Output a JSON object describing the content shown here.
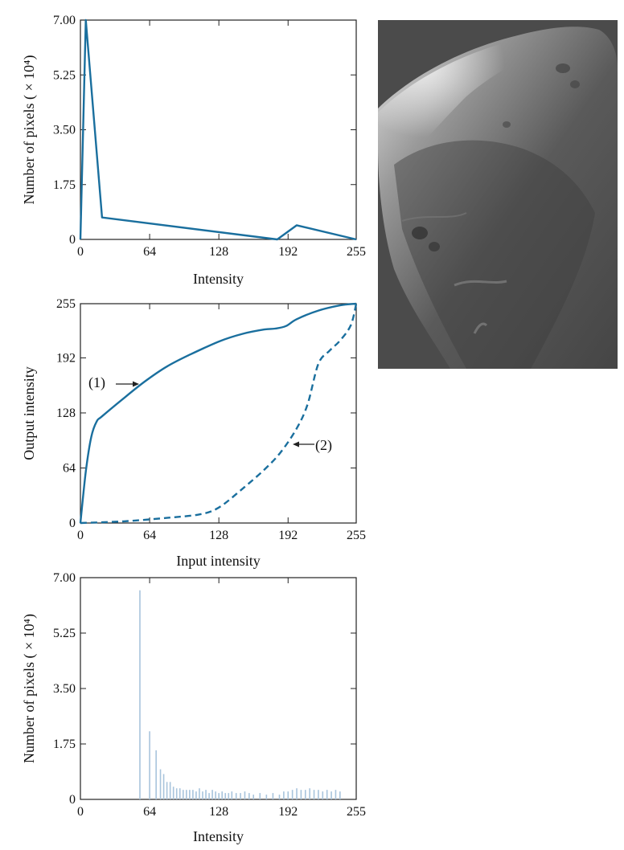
{
  "chart_data": [
    {
      "type": "line",
      "xlabel": "Intensity",
      "ylabel": "Number of pixels ( × 10⁴)",
      "xlim": [
        0,
        255
      ],
      "ylim": [
        0,
        7.0
      ],
      "xticks": [
        0,
        64,
        128,
        192,
        255
      ],
      "yticks": [
        0,
        1.75,
        3.5,
        5.25,
        7.0
      ],
      "xtick_labels": [
        "0",
        "64",
        "128",
        "192",
        "255"
      ],
      "ytick_labels": [
        "0",
        "1.75",
        "3.50",
        "5.25",
        "7.00"
      ],
      "series": [
        {
          "color": "#1a6f9e",
          "x": [
            0,
            5,
            20,
            182,
            200,
            255
          ],
          "y": [
            0,
            7.0,
            0.7,
            0.0,
            0.45,
            0.0
          ]
        }
      ]
    },
    {
      "type": "line",
      "xlabel": "Input intensity",
      "ylabel": "Output intensity",
      "xlim": [
        0,
        255
      ],
      "ylim": [
        0,
        255
      ],
      "xticks": [
        0,
        64,
        128,
        192,
        255
      ],
      "yticks": [
        0,
        64,
        128,
        192,
        255
      ],
      "xtick_labels": [
        "0",
        "64",
        "128",
        "192",
        "255"
      ],
      "ytick_labels": [
        "0",
        "64",
        "128",
        "192",
        "255"
      ],
      "annotations": [
        "(1)",
        "(2)"
      ],
      "series": [
        {
          "name": "(1)",
          "style": "solid",
          "color": "#1a6f9e",
          "x": [
            0,
            5,
            10,
            15,
            20,
            40,
            60,
            80,
            100,
            128,
            150,
            170,
            180,
            190,
            200,
            220,
            240,
            255
          ],
          "y": [
            0,
            60,
            100,
            118,
            124,
            145,
            165,
            182,
            195,
            211,
            220,
            225,
            226,
            229,
            237,
            247,
            253,
            255
          ]
        },
        {
          "name": "(2)",
          "style": "dashed",
          "color": "#1a6f9e",
          "x": [
            0,
            40,
            80,
            110,
            128,
            150,
            170,
            185,
            200,
            210,
            220,
            230,
            240,
            250,
            255
          ],
          "y": [
            0,
            2,
            6,
            10,
            18,
            40,
            62,
            82,
            110,
            138,
            185,
            200,
            212,
            230,
            255
          ]
        }
      ]
    },
    {
      "type": "bar",
      "xlabel": "Intensity",
      "ylabel": "Number of pixels ( × 10⁴)",
      "xlim": [
        0,
        255
      ],
      "ylim": [
        0,
        7.0
      ],
      "xticks": [
        0,
        64,
        128,
        192,
        255
      ],
      "yticks": [
        0,
        1.75,
        3.5,
        5.25,
        7.0
      ],
      "xtick_labels": [
        "0",
        "64",
        "128",
        "192",
        "255"
      ],
      "ytick_labels": [
        "0",
        "1.75",
        "3.50",
        "5.25",
        "7.00"
      ],
      "color": "#a8c4dc",
      "x": [
        55,
        64,
        70,
        74,
        77,
        80,
        83,
        86,
        89,
        92,
        95,
        98,
        101,
        104,
        107,
        110,
        113,
        116,
        119,
        122,
        125,
        128,
        131,
        134,
        137,
        140,
        144,
        148,
        152,
        156,
        160,
        166,
        172,
        178,
        184,
        188,
        192,
        196,
        200,
        204,
        208,
        212,
        216,
        220,
        224,
        228,
        232,
        236,
        240
      ],
      "values": [
        6.6,
        2.15,
        1.55,
        0.95,
        0.8,
        0.55,
        0.55,
        0.4,
        0.35,
        0.35,
        0.3,
        0.3,
        0.3,
        0.3,
        0.25,
        0.35,
        0.25,
        0.3,
        0.2,
        0.3,
        0.25,
        0.2,
        0.25,
        0.2,
        0.2,
        0.25,
        0.2,
        0.2,
        0.25,
        0.2,
        0.15,
        0.2,
        0.15,
        0.2,
        0.15,
        0.25,
        0.25,
        0.3,
        0.35,
        0.3,
        0.3,
        0.35,
        0.3,
        0.3,
        0.25,
        0.3,
        0.25,
        0.3,
        0.25
      ]
    }
  ]
}
